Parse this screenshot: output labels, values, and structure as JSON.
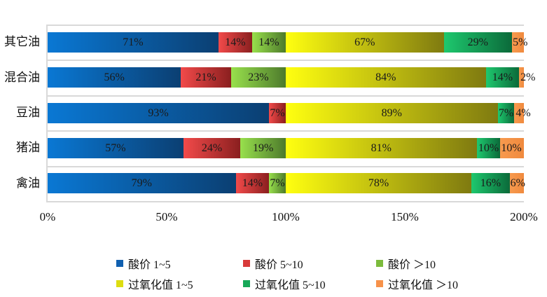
{
  "chart_data": {
    "type": "bar",
    "orientation": "horizontal",
    "stacked": true,
    "title": "",
    "xlabel": "",
    "ylabel": "",
    "xlim": [
      0,
      200
    ],
    "x_ticks": [
      "0%",
      "50%",
      "100%",
      "150%",
      "200%"
    ],
    "categories": [
      "其它油",
      "混合油",
      "豆油",
      "猪油",
      "禽油"
    ],
    "series": [
      {
        "name": "酸价 1~5",
        "values": [
          71,
          56,
          93,
          57,
          79
        ],
        "labels": [
          "71%",
          "56%",
          "93%",
          "57%",
          "79%"
        ],
        "color_light": "#0a78d4",
        "color_dark": "#0b3f72"
      },
      {
        "name": "酸价 5~10",
        "values": [
          14,
          21,
          7,
          24,
          14
        ],
        "labels": [
          "14%",
          "21%",
          "7%",
          "24%",
          "14%"
        ],
        "color_light": "#f24a4a",
        "color_dark": "#8a1f1f"
      },
      {
        "name": "酸价 >10",
        "values": [
          14,
          23,
          0,
          19,
          7
        ],
        "labels": [
          "14%",
          "23%",
          "",
          "19%",
          "7%"
        ],
        "color_light": "#98e04c",
        "color_dark": "#4d7a2c"
      },
      {
        "name": "过氧化值 1~5",
        "values": [
          67,
          84,
          89,
          81,
          78
        ],
        "labels": [
          "67%",
          "84%",
          "89%",
          "81%",
          "78%"
        ],
        "color_light": "#ffff10",
        "color_dark": "#7f7a10"
      },
      {
        "name": "过氧化值 5~10",
        "values": [
          29,
          14,
          7,
          10,
          16
        ],
        "labels": [
          "29%",
          "14%",
          "7%",
          "10%",
          "16%"
        ],
        "color_light": "#1ec86e",
        "color_dark": "#0b6a3a"
      },
      {
        "name": "过氧化值 >10",
        "values": [
          5,
          2,
          4,
          10,
          6
        ],
        "labels": [
          "5%",
          "2%",
          "4%",
          "10%",
          "6%"
        ],
        "color_light": "#f79a4e",
        "color_dark": "#f08a3e"
      }
    ],
    "grid": true,
    "legend_position": "bottom",
    "legend_columns": 3
  },
  "legend": {
    "items": [
      {
        "label": "酸价 1~5",
        "color": "#1060b0"
      },
      {
        "label": "酸价 5~10",
        "color": "#d83a3a"
      },
      {
        "label": "酸价 ＞10",
        "color": "#7cbb3c"
      },
      {
        "label": "过氧化值 1~5",
        "color": "#dddd10"
      },
      {
        "label": "过氧化值 5~10",
        "color": "#17a858"
      },
      {
        "label": "过氧化值 ＞10",
        "color": "#f7924a"
      }
    ]
  }
}
